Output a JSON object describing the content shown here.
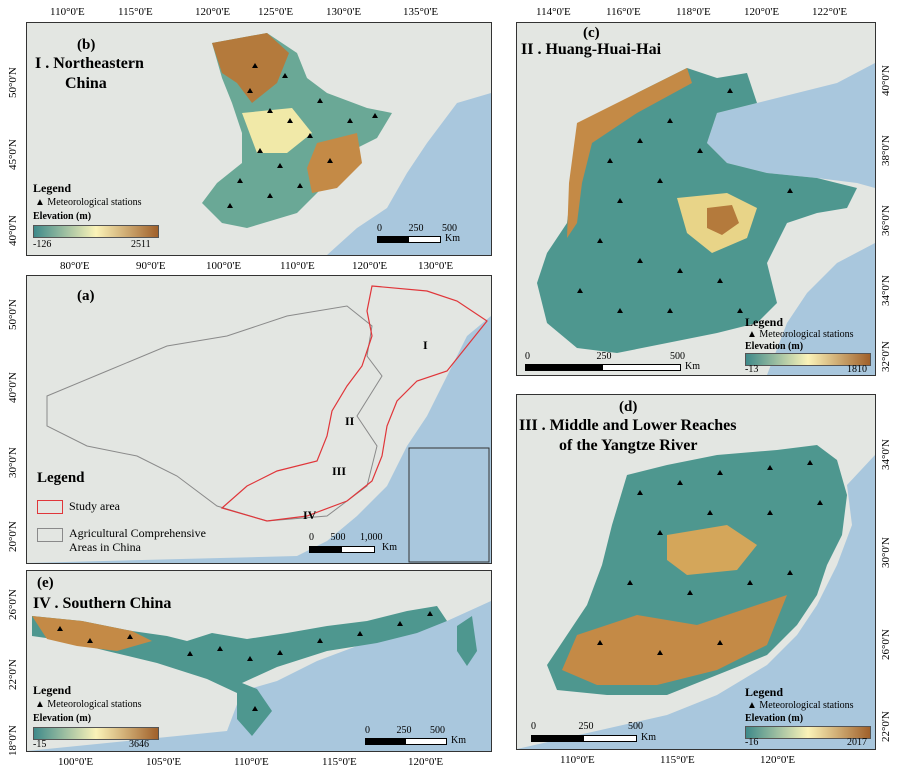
{
  "colors": {
    "ocean": "#a9c7dd",
    "land": "#e3e6e2",
    "elev_low": "#3f8a8a",
    "elev_mid": "#fbf3b8",
    "elev_high": "#a0602a",
    "study_area": "#e0363a",
    "agri_areas": "#8a8a8a"
  },
  "panel_b": {
    "letter": "(b)",
    "title_line1": "I . Northeastern",
    "title_line2": "China",
    "top_ticks": [
      "110°0'E",
      "115°0'E",
      "120°0'E",
      "125°0'E",
      "130°0'E",
      "135°0'E"
    ],
    "left_ticks": [
      "50°0'N",
      "45°0'N",
      "40°0'N"
    ],
    "legend_title": "Legend",
    "legend_station": "Meteorological stations",
    "legend_elev": "Elevation (m)",
    "elev_min": "-126",
    "elev_max": "2511",
    "scale_labels": [
      "0",
      "250",
      "500"
    ],
    "scale_unit": "Km"
  },
  "panel_a": {
    "letter": "(a)",
    "top_ticks": [
      "80°0'E",
      "90°0'E",
      "100°0'E",
      "110°0'E",
      "120°0'E",
      "130°0'E"
    ],
    "left_ticks": [
      "50°0'N",
      "40°0'N",
      "30°0'N",
      "20°0'N"
    ],
    "region_labels": [
      "I",
      "II",
      "III",
      "IV"
    ],
    "legend_title": "Legend",
    "legend_study": "Study area",
    "legend_agri_line1": "Agricultural Comprehensive",
    "legend_agri_line2": "Areas in China",
    "scale_labels": [
      "0",
      "500",
      "1,000"
    ],
    "scale_unit": "Km"
  },
  "panel_c": {
    "letter": "(c)",
    "title": "II . Huang-Huai-Hai",
    "top_ticks": [
      "114°0'E",
      "116°0'E",
      "118°0'E",
      "120°0'E",
      "122°0'E"
    ],
    "right_ticks": [
      "40°0'N",
      "38°0'N",
      "36°0'N",
      "34°0'N",
      "32°0'N"
    ],
    "legend_title": "Legend",
    "legend_station": "Meteorological stations",
    "legend_elev": "Elevation (m)",
    "elev_min": "-13",
    "elev_max": "1810",
    "scale_labels": [
      "0",
      "250",
      "500"
    ],
    "scale_unit": "Km"
  },
  "panel_d": {
    "letter": "(d)",
    "title_line1": "III . Middle and Lower Reaches",
    "title_line2": "of the Yangtze River",
    "bottom_ticks": [
      "110°0'E",
      "115°0'E",
      "120°0'E"
    ],
    "right_ticks": [
      "34°0'N",
      "30°0'N",
      "26°0'N",
      "22°0'N"
    ],
    "legend_title": "Legend",
    "legend_station": "Meteorological stations",
    "legend_elev": "Elevation (m)",
    "elev_min": "-16",
    "elev_max": "2017",
    "scale_labels": [
      "0",
      "250",
      "500"
    ],
    "scale_unit": "Km"
  },
  "panel_e": {
    "letter": "(e)",
    "title": "IV . Southern China",
    "bottom_ticks": [
      "100°0'E",
      "105°0'E",
      "110°0'E",
      "115°0'E",
      "120°0'E"
    ],
    "left_ticks": [
      "26°0'N",
      "22°0'N",
      "18°0'N"
    ],
    "legend_title": "Legend",
    "legend_station": "Meteorological stations",
    "legend_elev": "Elevation (m)",
    "elev_min": "-15",
    "elev_max": "3646",
    "scale_labels": [
      "0",
      "250",
      "500"
    ],
    "scale_unit": "Km"
  }
}
